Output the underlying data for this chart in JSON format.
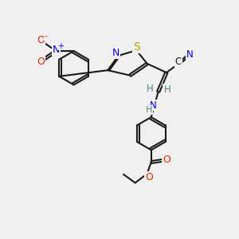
{
  "background_color": "#f0f0f0",
  "bond_color": "#1a1a1a",
  "bond_width": 1.5,
  "colors": {
    "N": "#0000ee",
    "O": "#ee2200",
    "S": "#aaaa00",
    "H": "#448888",
    "C": "#1a1a1a"
  },
  "figsize": [
    3.0,
    3.0
  ],
  "dpi": 100
}
